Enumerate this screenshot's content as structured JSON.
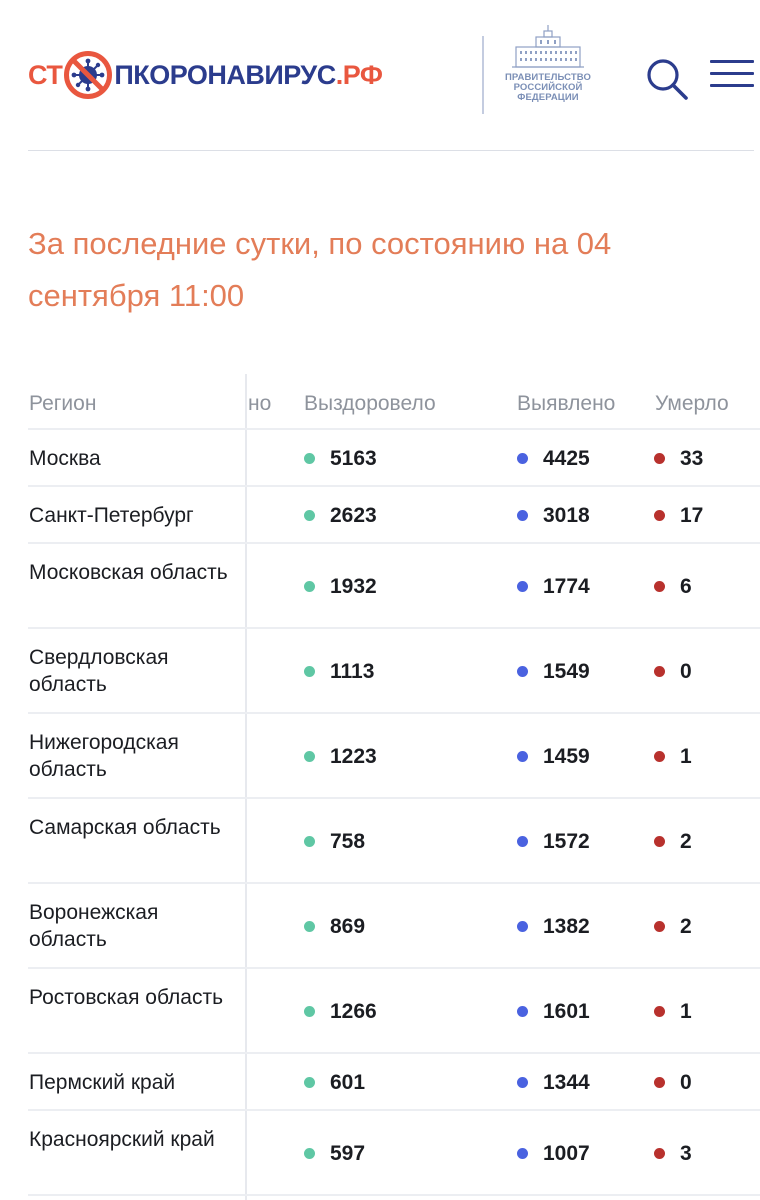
{
  "header": {
    "logo": {
      "part1": "СТ",
      "part2": "ПКОРОНАВИРУС",
      "part3": ".РФ"
    },
    "gov": {
      "line1": "ПРАВИТЕЛЬСТВО",
      "line2": "РОССИЙСКОЙ",
      "line3": "ФЕДЕРАЦИИ"
    },
    "icons": {
      "search": "search-icon",
      "menu": "hamburger-menu-icon",
      "virus": "virus-stop-icon",
      "gov": "government-building-icon"
    }
  },
  "heading": "За последние сутки, по состоянию на 04 сентября 11:00",
  "table": {
    "columns": {
      "region": "Регион",
      "hidden": "но",
      "recovered": "Выздоровело",
      "detected": "Выявлено",
      "died": "Умерло"
    },
    "rows": [
      {
        "region": "Москва",
        "recovered": "5163",
        "detected": "4425",
        "died": "33"
      },
      {
        "region": "Санкт-Петербург",
        "recovered": "2623",
        "detected": "3018",
        "died": "17"
      },
      {
        "region": "Московская область",
        "recovered": "1932",
        "detected": "1774",
        "died": "6"
      },
      {
        "region": "Свердловская область",
        "recovered": "1113",
        "detected": "1549",
        "died": "0"
      },
      {
        "region": "Нижегородская область",
        "recovered": "1223",
        "detected": "1459",
        "died": "1"
      },
      {
        "region": "Самарская область",
        "recovered": "758",
        "detected": "1572",
        "died": "2"
      },
      {
        "region": "Воронежская область",
        "recovered": "869",
        "detected": "1382",
        "died": "2"
      },
      {
        "region": "Ростовская область",
        "recovered": "1266",
        "detected": "1601",
        "died": "1"
      },
      {
        "region": "Пермский край",
        "recovered": "601",
        "detected": "1344",
        "died": "0"
      },
      {
        "region": "Красноярский край",
        "recovered": "597",
        "detected": "1007",
        "died": "3"
      }
    ]
  },
  "colors": {
    "accent": "#e9573f",
    "navy": "#2b3c8d",
    "heading": "#e37d58",
    "recovered": "#5fc7a4",
    "detected": "#4a62e0",
    "died": "#b8312d"
  }
}
